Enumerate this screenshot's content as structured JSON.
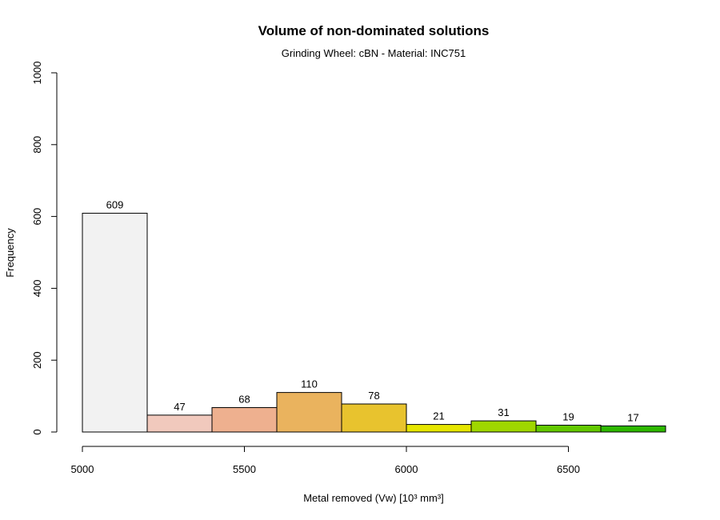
{
  "chart_data": {
    "type": "bar",
    "title": "Volume of non-dominated solutions",
    "subtitle": "Grinding Wheel: cBN - Material: INC751",
    "xlabel": "Metal removed (Vw) [10³ mm³]",
    "ylabel": "Frequency",
    "xlim": [
      5000,
      6800
    ],
    "ylim": [
      0,
      1000
    ],
    "x_ticks": [
      5000,
      5500,
      6000,
      6500
    ],
    "y_ticks": [
      0,
      200,
      400,
      600,
      800,
      1000
    ],
    "bin_edges": [
      5000,
      5200,
      5400,
      5600,
      5800,
      6000,
      6200,
      6400,
      6600,
      6800
    ],
    "values": [
      609,
      47,
      68,
      110,
      78,
      21,
      31,
      19,
      17
    ],
    "bar_colors": [
      "#F2F2F2",
      "#F1C9BD",
      "#EEB08F",
      "#EAB35E",
      "#E8C32E",
      "#E6E600",
      "#9FD700",
      "#63C800",
      "#2EB800"
    ],
    "grid": false,
    "legend": "none"
  }
}
